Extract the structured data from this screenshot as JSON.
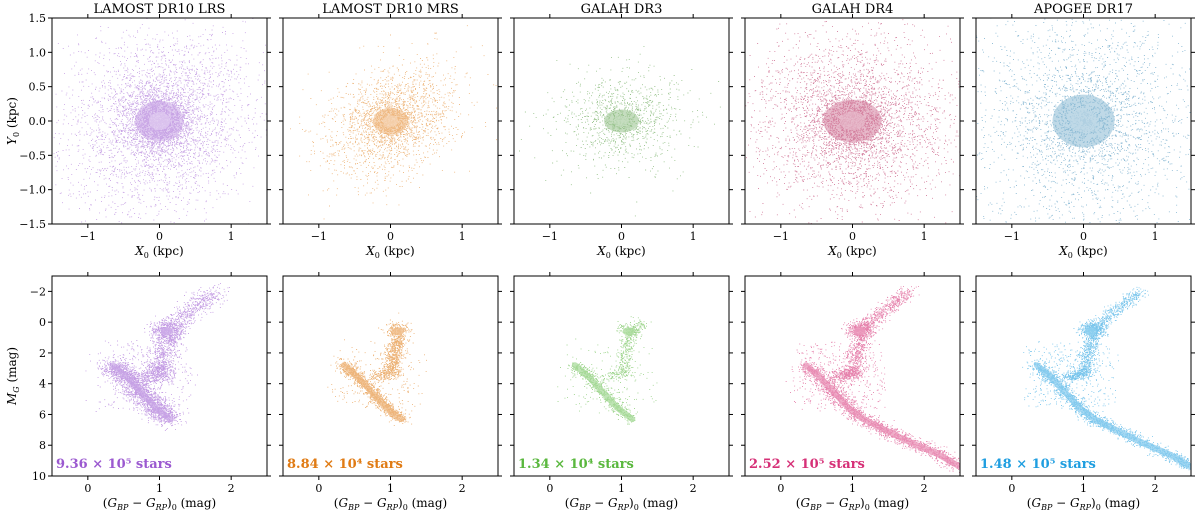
{
  "chart_data": [
    {
      "type": "scatter",
      "panel": "spatial",
      "title": "LAMOST DR10 LRS",
      "xlabel": "X_0 (kpc)",
      "ylabel": "Y_0 (kpc)",
      "xlim": [
        -1.5,
        1.5
      ],
      "ylim": [
        -1.5,
        1.5
      ],
      "xticks": [
        "−1",
        "0",
        "1"
      ],
      "yticks": [
        "−1.5",
        "−1.0",
        "−0.5",
        "0.0",
        "0.5",
        "1.0",
        "1.5"
      ],
      "color": "#9b59d0"
    },
    {
      "type": "scatter",
      "panel": "spatial",
      "title": "LAMOST DR10 MRS",
      "xlabel": "X_0 (kpc)",
      "ylabel": "",
      "xlim": [
        -1.5,
        1.5
      ],
      "ylim": [
        -1.5,
        1.5
      ],
      "xticks": [
        "−1",
        "0",
        "1"
      ],
      "color": "#e07b14"
    },
    {
      "type": "scatter",
      "panel": "spatial",
      "title": "GALAH DR3",
      "xlabel": "X_0 (kpc)",
      "ylabel": "",
      "xlim": [
        -1.5,
        1.5
      ],
      "ylim": [
        -1.5,
        1.5
      ],
      "xticks": [
        "−1",
        "0",
        "1"
      ],
      "color": "#3f8f2a"
    },
    {
      "type": "scatter",
      "panel": "spatial",
      "title": "GALAH DR4",
      "xlabel": "X_0 (kpc)",
      "ylabel": "",
      "xlim": [
        -1.5,
        1.5
      ],
      "ylim": [
        -1.5,
        1.5
      ],
      "xticks": [
        "−1",
        "0",
        "1"
      ],
      "color": "#b0164f"
    },
    {
      "type": "scatter",
      "panel": "spatial",
      "title": "APOGEE DR17",
      "xlabel": "X_0 (kpc)",
      "ylabel": "",
      "xlim": [
        -1.5,
        1.5
      ],
      "ylim": [
        -1.5,
        1.5
      ],
      "xticks": [
        "−1",
        "0",
        "1"
      ],
      "color": "#2a7fb0"
    },
    {
      "type": "scatter",
      "panel": "cmd",
      "xlabel": "(G_BP − G_RP)_0 (mag)",
      "ylabel": "M_G (mag)",
      "xlim": [
        -0.5,
        2.5
      ],
      "ylim": [
        10,
        -3
      ],
      "xticks": [
        "0",
        "1",
        "2"
      ],
      "yticks": [
        "−2",
        "0",
        "2",
        "4",
        "6",
        "8",
        "10"
      ],
      "count_label": "9.36 × 10⁵ stars",
      "color": "#9b59d0"
    },
    {
      "type": "scatter",
      "panel": "cmd",
      "xlabel": "(G_BP − G_RP)_0 (mag)",
      "ylabel": "",
      "xlim": [
        -0.5,
        2.5
      ],
      "ylim": [
        10,
        -3
      ],
      "xticks": [
        "0",
        "1",
        "2"
      ],
      "count_label": "8.84 × 10⁴ stars",
      "color": "#e07b14"
    },
    {
      "type": "scatter",
      "panel": "cmd",
      "xlabel": "(G_BP − G_RP)_0 (mag)",
      "ylabel": "",
      "xlim": [
        -0.5,
        2.5
      ],
      "ylim": [
        10,
        -3
      ],
      "xticks": [
        "0",
        "1",
        "2"
      ],
      "count_label": "1.34 × 10⁴ stars",
      "color": "#5ab83e"
    },
    {
      "type": "scatter",
      "panel": "cmd",
      "xlabel": "(G_BP − G_RP)_0 (mag)",
      "ylabel": "",
      "xlim": [
        -0.5,
        2.5
      ],
      "ylim": [
        10,
        -3
      ],
      "xticks": [
        "0",
        "1",
        "2"
      ],
      "count_label": "2.52 × 10⁵ stars",
      "color": "#d63077"
    },
    {
      "type": "scatter",
      "panel": "cmd",
      "xlabel": "(G_BP − G_RP)_0 (mag)",
      "ylabel": "",
      "xlim": [
        -0.5,
        2.5
      ],
      "ylim": [
        10,
        -3
      ],
      "xticks": [
        "0",
        "1",
        "2"
      ],
      "count_label": "1.48 × 10⁵ stars",
      "color": "#1f9ee0"
    }
  ]
}
